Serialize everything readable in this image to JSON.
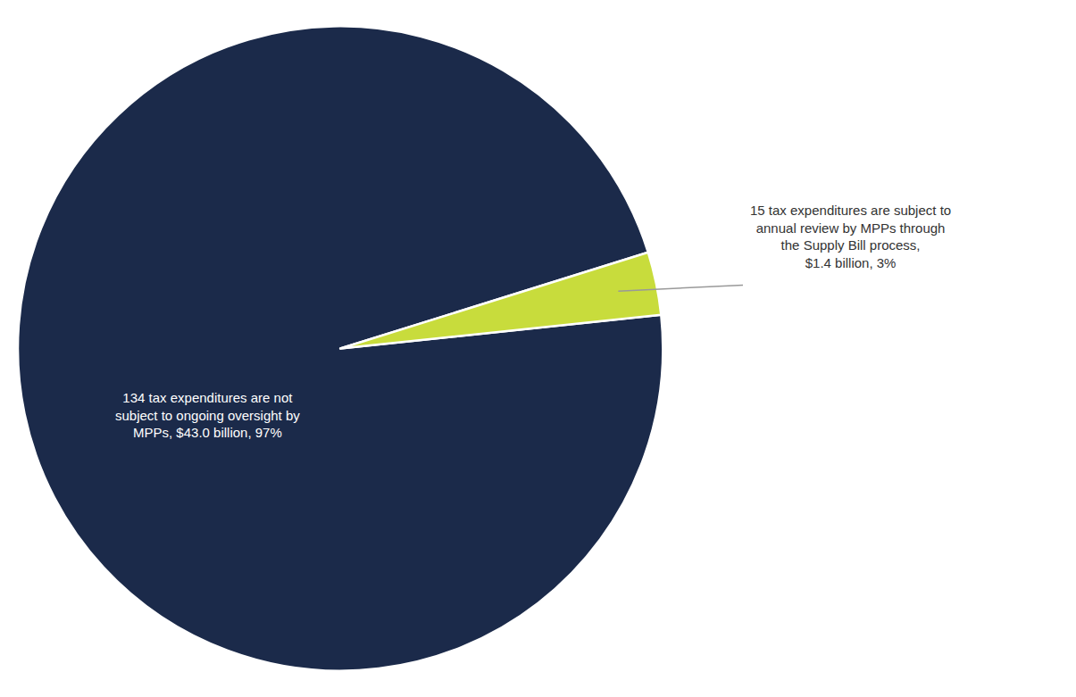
{
  "chart_data": {
    "type": "pie",
    "values": [
      43.0,
      1.4
    ],
    "colors": [
      "#1b2a4a",
      "#c8dc3c"
    ],
    "data_labels": true,
    "value_labels": [
      "134 tax expenditures are not\nsubject to ongoing oversight by\nMPPs, $43.0 billion, 97%",
      "15 tax expenditures are subject to\nannual review by MPPs through\nthe Supply Bill process,\n$1.4 billion, 3%"
    ]
  }
}
